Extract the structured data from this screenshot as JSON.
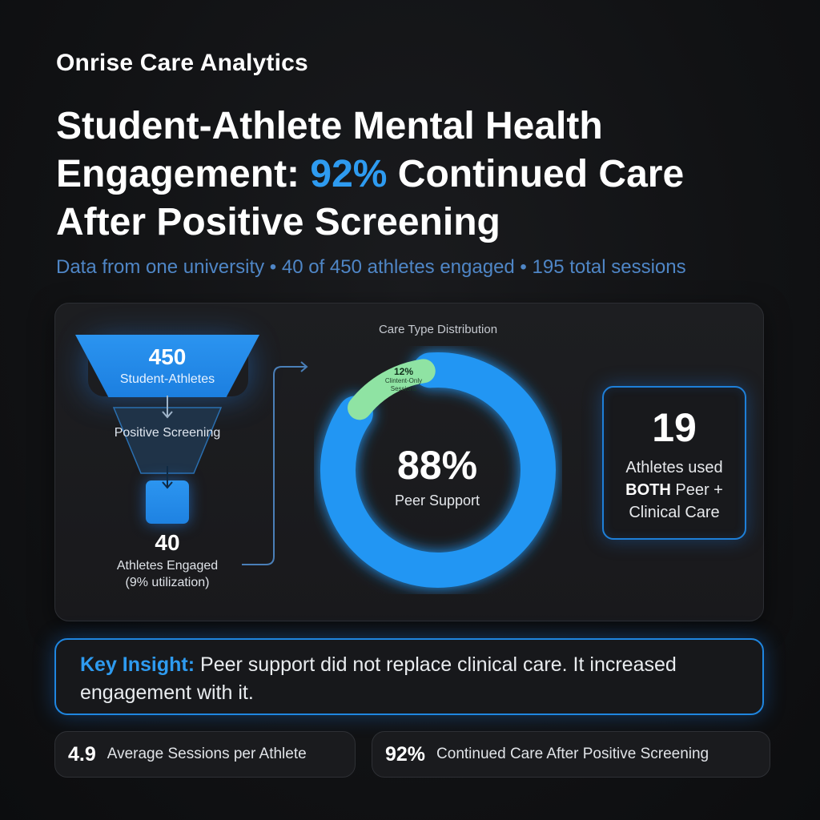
{
  "brand": "Onrise Care Analytics",
  "title": {
    "line1": "Student-Athlete Mental Health",
    "line2_prefix": "Engagement: ",
    "line2_accent": "92%",
    "line2_suffix": " Continued Care",
    "line3": "After Positive Screening"
  },
  "subtitle": "Data from one university • 40 of 450 athletes engaged • 195 total sessions",
  "funnel": {
    "top_value": "450",
    "top_label": "Student-Athletes",
    "mid_label": "Positive Screening",
    "bottom_value": "40",
    "bottom_label": "Athletes Engaged",
    "bottom_sublabel": "(9% utilization)"
  },
  "chart_data": {
    "type": "pie",
    "title": "Care Type Distribution",
    "categories": [
      "Peer Support",
      "Clinical-Only Sessions"
    ],
    "values": [
      88,
      12
    ],
    "labels": [
      "88%",
      "12%"
    ],
    "center_label": "Peer Support",
    "slice_label": "Clintent-Only Sessions",
    "colors": [
      "#2196f3",
      "#8fe3a3"
    ]
  },
  "stat": {
    "value": "19",
    "label_prefix": "Athletes used",
    "label_bold": "BOTH",
    "label_suffix": " Peer +",
    "label_line3": "Clinical Care"
  },
  "insight": {
    "key": "Key Insight:",
    "text": " Peer support did not replace clinical care. It increased engagement with it."
  },
  "metrics": [
    {
      "value": "4.9",
      "label": "Average Sessions per Athlete"
    },
    {
      "value": "92%",
      "label": "Continued Care After Positive Screening"
    }
  ],
  "colors": {
    "accent": "#2e9bf0",
    "background": "#111214",
    "green": "#8fe3a3"
  }
}
